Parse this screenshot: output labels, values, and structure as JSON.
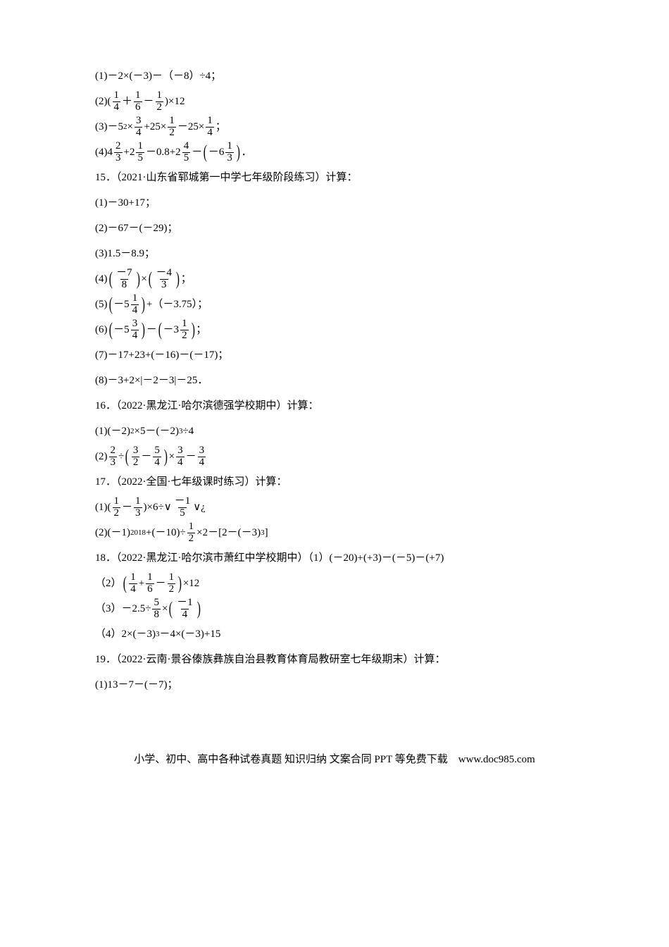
{
  "colors": {
    "text": "#000000",
    "background": "#ffffff"
  },
  "fontsize_pt": 11,
  "q14": {
    "p1_a": "(1)－2×(－3)－（－8）÷4；",
    "p2_pre": "(2)(",
    "p2_mid": "＋",
    "p2_mid2": "－",
    "p2_post": ")×12",
    "p3_pre": "(3)－5",
    "p3_sup": "2",
    "p3_a": "×",
    "p3_b": "+25×",
    "p3_c": "－25×",
    "p3_end": "；",
    "p4_pre": "(4)4",
    "p4_a": "+2",
    "p4_b": "－0.8+2",
    "p4_c": "－",
    "p4_d": "－6",
    "p4_end": "．"
  },
  "q15": {
    "title": "15．（2021·山东省郓城第一中学七年级阶段练习）计算：",
    "p1": "(1)－30+17；",
    "p2": "(2)－67－(－29)；",
    "p3": "(3)1.5－8.9；",
    "p4_pre": "(4)",
    "p4_mid": "×",
    "p4_end": "；",
    "p5_pre": "(5)",
    "p5_neg": "－5",
    "p5_mid": "+（－3.75）；",
    "p6_pre": "(6)",
    "p6_a": "－5",
    "p6_mid": "－",
    "p6_b": "－3",
    "p6_end": "；",
    "p7": "(7)－17+23+(－16)－(－17)；",
    "p8": "(8)－3+2×|－2－3|－25．"
  },
  "q16": {
    "title": "16．（2022·黑龙江·哈尔滨德强学校期中）计算：",
    "p1": "(1)(－2)",
    "p1s": "2",
    "p1b": "×5－(－2)",
    "p1s2": "3",
    "p1c": "÷4",
    "p2_pre": "(2)",
    "p2_mid": "÷",
    "p2_mid2": "－",
    "p2_mid3": "×",
    "p2_mid4": "－"
  },
  "q17": {
    "title": "17．（2022·全国·七年级课时练习）计算：",
    "p1_pre": "(1)(",
    "p1_mid": "－",
    "p1_post": ")×6÷∨",
    "p1_end": "∨¿",
    "p2_pre": "(2)(－1)",
    "p2_sup": "2018",
    "p2_a": "+(－10)÷",
    "p2_b": "×2－[2－(－3)",
    "p2_sup2": "3",
    "p2_c": "]"
  },
  "q18": {
    "title": "18．（2022·黑龙江·哈尔滨市萧红中学校期中）（1）(－20)+(+3)－(－5)－(+7)",
    "p2_pre": "（2）",
    "p2_a": "+",
    "p2_b": "－",
    "p2_post": "×12",
    "p3_pre": "（3）－2.5÷",
    "p3_mid": "×",
    "p4_pre": "（4）2×(－3)",
    "p4_sup": "3",
    "p4_post": "－4×(－3)+15"
  },
  "q19": {
    "title": "19．（2022·云南·景谷傣族彝族自治县教育体育局教研室七年级期末）计算：",
    "p1": "(1)13－7－(－7)；"
  },
  "fractions": {
    "1_4": {
      "n": "1",
      "d": "4"
    },
    "1_6": {
      "n": "1",
      "d": "6"
    },
    "1_2": {
      "n": "1",
      "d": "2"
    },
    "3_4": {
      "n": "3",
      "d": "4"
    },
    "2_3": {
      "n": "2",
      "d": "3"
    },
    "1_5": {
      "n": "1",
      "d": "5"
    },
    "4_5": {
      "n": "4",
      "d": "5"
    },
    "1_3": {
      "n": "1",
      "d": "3"
    },
    "n7_8": {
      "n": "－7",
      "d": "8"
    },
    "n4_3": {
      "n": "－4",
      "d": "3"
    },
    "5_4": {
      "n": "5",
      "d": "4"
    },
    "3_2": {
      "n": "3",
      "d": "2"
    },
    "5_8": {
      "n": "5",
      "d": "8"
    },
    "n1_4": {
      "n": "－1",
      "d": "4"
    },
    "n1_5": {
      "n": "－1",
      "d": "5"
    }
  },
  "footer": "小学、初中、高中各种试卷真题 知识归纳 文案合同 PPT 等免费下载　www.doc985.com"
}
